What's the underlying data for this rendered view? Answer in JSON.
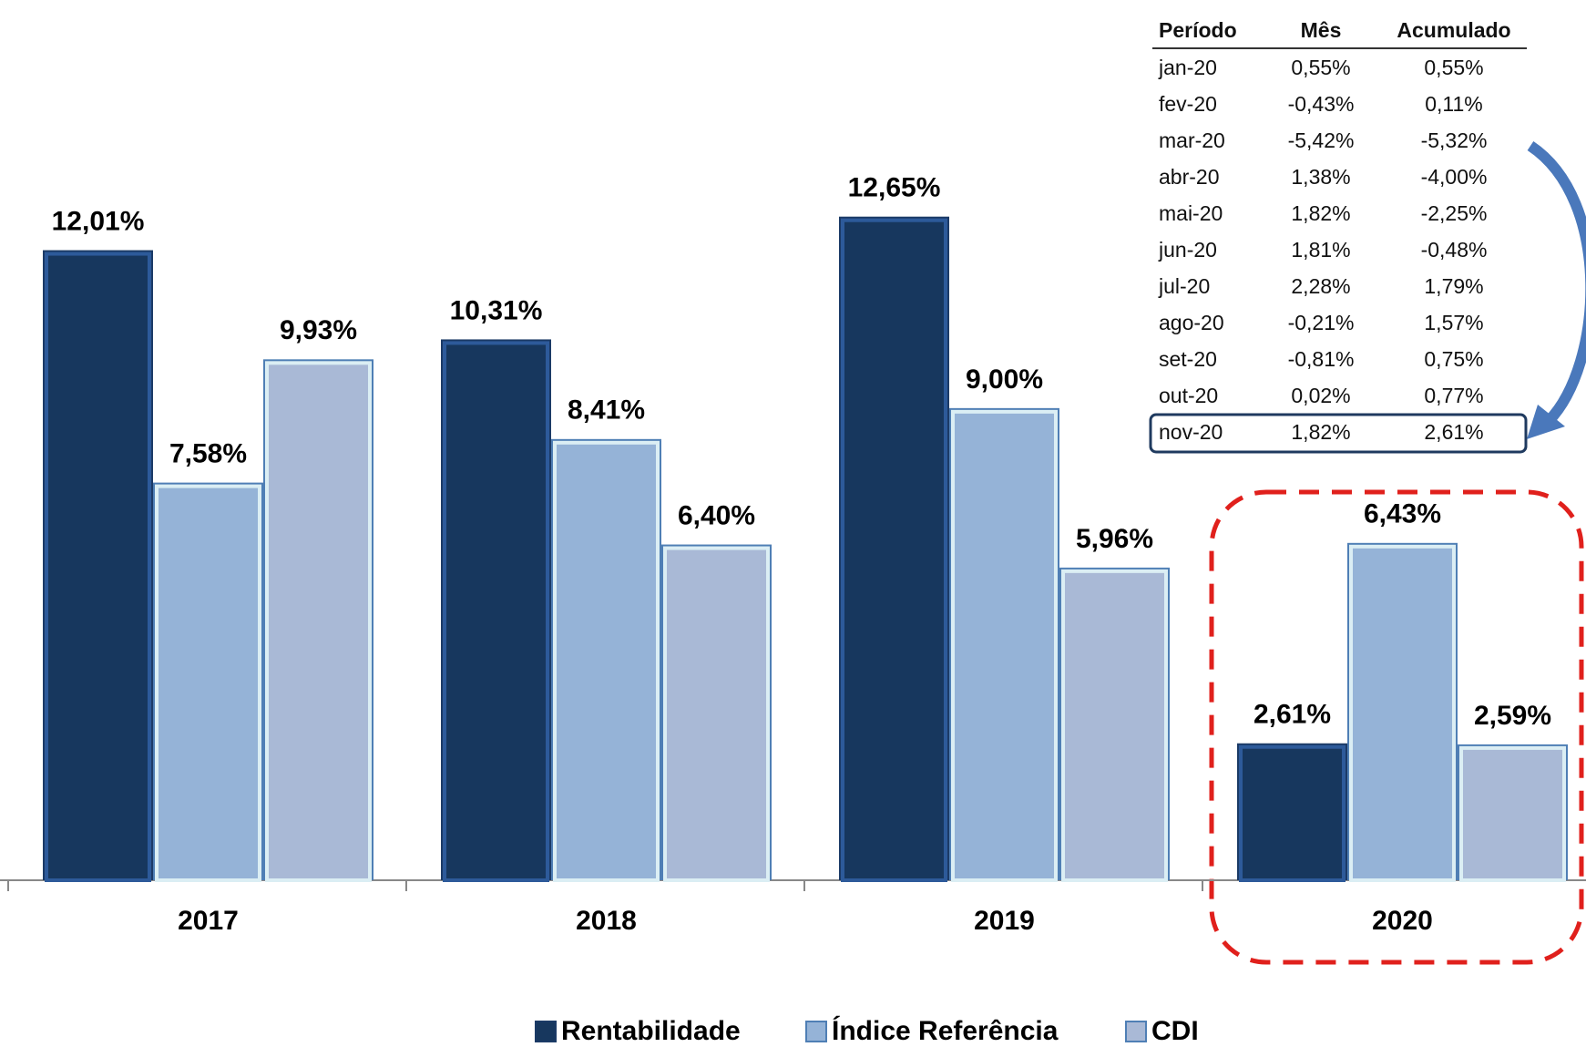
{
  "chart_data": {
    "type": "bar",
    "categories": [
      "2017",
      "2018",
      "2019",
      "2020"
    ],
    "series": [
      {
        "name": "Rentabilidade",
        "color": "#17375e",
        "values": [
          12.01,
          10.31,
          12.65,
          2.61
        ],
        "value_labels": [
          "12,01%",
          "10,31%",
          "12,65%",
          "2,61%"
        ]
      },
      {
        "name": "Índice Referência",
        "color": "#95b3d7",
        "values": [
          7.58,
          8.41,
          9.0,
          6.43
        ],
        "value_labels": [
          "7,58%",
          "8,41%",
          "9,00%",
          "6,43%"
        ]
      },
      {
        "name": "CDI",
        "color": "#a9b9d6",
        "values": [
          9.93,
          6.4,
          5.96,
          2.59
        ],
        "value_labels": [
          "9,93%",
          "6,40%",
          "5,96%",
          "2,59%"
        ]
      }
    ],
    "ylim": [
      0,
      14
    ]
  },
  "table": {
    "header": [
      "Período",
      "Mês",
      "Acumulado"
    ],
    "rows": [
      [
        "jan-20",
        "0,55%",
        "0,55%"
      ],
      [
        "fev-20",
        "-0,43%",
        "0,11%"
      ],
      [
        "mar-20",
        "-5,42%",
        "-5,32%"
      ],
      [
        "abr-20",
        "1,38%",
        "-4,00%"
      ],
      [
        "mai-20",
        "1,82%",
        "-2,25%"
      ],
      [
        "jun-20",
        "1,81%",
        "-0,48%"
      ],
      [
        "jul-20",
        "2,28%",
        "1,79%"
      ],
      [
        "ago-20",
        "-0,21%",
        "1,57%"
      ],
      [
        "set-20",
        "-0,81%",
        "0,75%"
      ],
      [
        "out-20",
        "0,02%",
        "0,77%"
      ],
      [
        "nov-20",
        "1,82%",
        "2,61%"
      ]
    ]
  }
}
